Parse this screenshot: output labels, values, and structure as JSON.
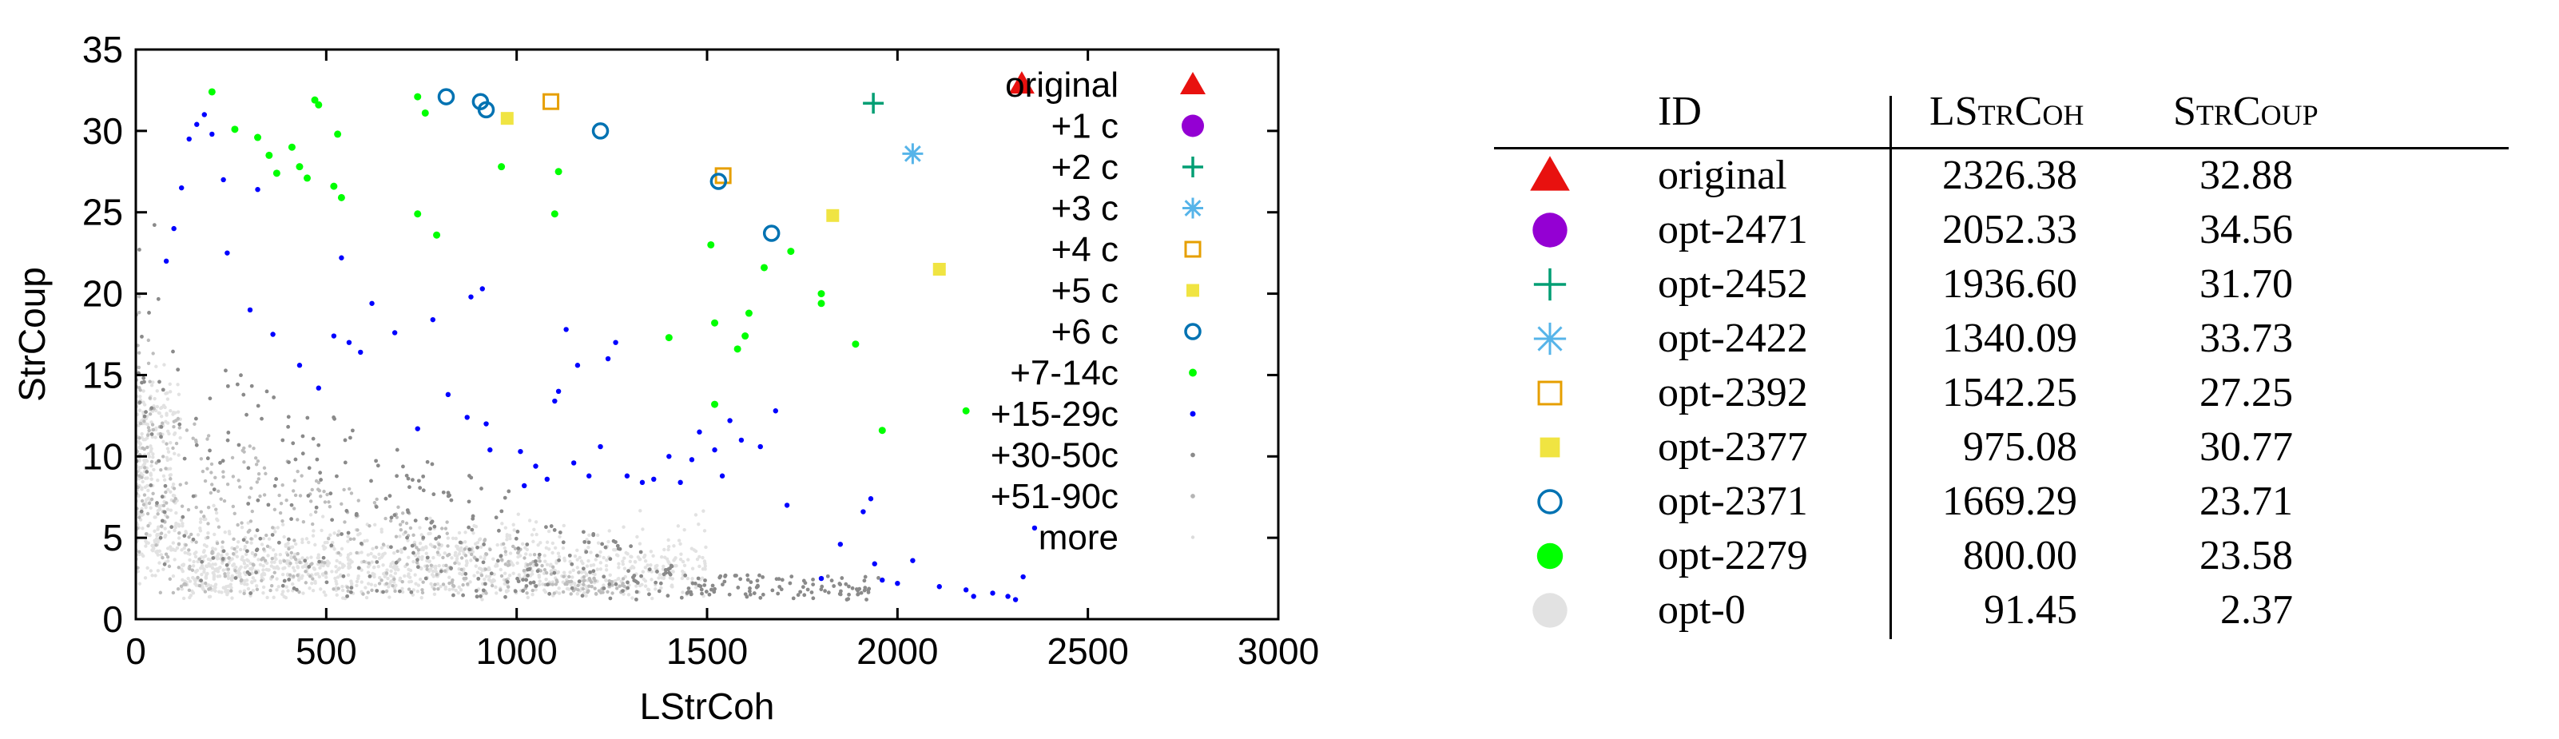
{
  "chart_data": {
    "type": "scatter",
    "xlabel": "LStrCoh",
    "ylabel": "StrCoup",
    "xlim": [
      0,
      3000
    ],
    "ylim": [
      0,
      35
    ],
    "xticks": [
      "0",
      "500",
      "1000",
      "1500",
      "2000",
      "2500",
      "3000"
    ],
    "yticks": [
      "0",
      "5",
      "10",
      "15",
      "20",
      "25",
      "30",
      "35"
    ],
    "legend_position": "top-right",
    "series": [
      {
        "name": "original",
        "marker": "triangle",
        "color": "#e8110f",
        "points": [
          [
            2326.38,
            32.88
          ]
        ]
      },
      {
        "name": "+1 c",
        "marker": "circle",
        "color": "#9400d3",
        "points": []
      },
      {
        "name": "+2 c",
        "marker": "plus",
        "color": "#009e73",
        "points": [
          [
            1936.6,
            31.7
          ]
        ]
      },
      {
        "name": "+3 c",
        "marker": "star",
        "color": "#56b4e9",
        "points": [
          [
            2040,
            28.6
          ]
        ]
      },
      {
        "name": "+4 c",
        "marker": "square-open",
        "color": "#e69f00",
        "points": [
          [
            1090,
            31.8
          ],
          [
            1542.25,
            27.25
          ]
        ]
      },
      {
        "name": "+5 c",
        "marker": "square-filled",
        "color": "#f0e442",
        "points": [
          [
            975.08,
            30.77
          ],
          [
            1830,
            24.8
          ],
          [
            2110,
            21.5
          ]
        ]
      },
      {
        "name": "+6 c",
        "marker": "circle-open",
        "color": "#0072b2",
        "points": [
          [
            815,
            32.1
          ],
          [
            905,
            31.8
          ],
          [
            920,
            31.3
          ],
          [
            1220,
            30.0
          ],
          [
            1530,
            26.9
          ],
          [
            1669.29,
            23.71
          ]
        ]
      },
      {
        "name": "+7-14c",
        "marker": "dot-large",
        "color": "#00ff00",
        "points": [
          [
            200,
            32.4
          ],
          [
            260,
            30.1
          ],
          [
            320,
            29.6
          ],
          [
            350,
            28.5
          ],
          [
            370,
            27.4
          ],
          [
            410,
            29.0
          ],
          [
            430,
            27.8
          ],
          [
            450,
            27.1
          ],
          [
            470,
            31.9
          ],
          [
            480,
            31.6
          ],
          [
            520,
            26.6
          ],
          [
            530,
            29.8
          ],
          [
            540,
            25.9
          ],
          [
            740,
            32.1
          ],
          [
            760,
            31.1
          ],
          [
            740,
            24.9
          ],
          [
            790,
            23.6
          ],
          [
            960,
            27.8
          ],
          [
            1110,
            27.5
          ],
          [
            1100,
            24.9
          ],
          [
            1510,
            23.0
          ],
          [
            1520,
            18.2
          ],
          [
            1600,
            17.4
          ],
          [
            1610,
            18.8
          ],
          [
            1580,
            16.6
          ],
          [
            1520,
            13.2
          ],
          [
            1400,
            17.3
          ],
          [
            1650,
            21.6
          ],
          [
            1720,
            22.6
          ],
          [
            1800,
            20.0
          ],
          [
            1800,
            19.4
          ],
          [
            1890,
            16.9
          ],
          [
            1960,
            11.6
          ],
          [
            2180,
            12.8
          ]
        ]
      },
      {
        "name": "+15-29c",
        "marker": "dot",
        "color": "#0000ff",
        "points": [
          [
            80,
            22.0
          ],
          [
            100,
            24.0
          ],
          [
            120,
            26.5
          ],
          [
            140,
            29.5
          ],
          [
            160,
            30.4
          ],
          [
            180,
            31.0
          ],
          [
            200,
            29.8
          ],
          [
            230,
            27.0
          ],
          [
            240,
            22.5
          ],
          [
            300,
            19.0
          ],
          [
            320,
            26.4
          ],
          [
            360,
            17.5
          ],
          [
            430,
            15.6
          ],
          [
            480,
            14.2
          ],
          [
            520,
            17.4
          ],
          [
            540,
            22.2
          ],
          [
            560,
            17.0
          ],
          [
            590,
            16.4
          ],
          [
            620,
            19.4
          ],
          [
            680,
            17.6
          ],
          [
            740,
            11.7
          ],
          [
            780,
            18.4
          ],
          [
            820,
            13.8
          ],
          [
            870,
            12.4
          ],
          [
            880,
            19.8
          ],
          [
            910,
            20.3
          ],
          [
            920,
            12.0
          ],
          [
            930,
            10.4
          ],
          [
            1010,
            10.3
          ],
          [
            1020,
            8.2
          ],
          [
            1050,
            9.4
          ],
          [
            1080,
            8.6
          ],
          [
            1100,
            13.4
          ],
          [
            1110,
            14.0
          ],
          [
            1130,
            17.8
          ],
          [
            1150,
            9.6
          ],
          [
            1160,
            15.6
          ],
          [
            1190,
            8.8
          ],
          [
            1220,
            10.6
          ],
          [
            1240,
            16.0
          ],
          [
            1260,
            17.0
          ],
          [
            1290,
            8.8
          ],
          [
            1330,
            8.4
          ],
          [
            1360,
            8.6
          ],
          [
            1400,
            10.0
          ],
          [
            1430,
            8.4
          ],
          [
            1460,
            9.8
          ],
          [
            1480,
            11.5
          ],
          [
            1520,
            10.4
          ],
          [
            1540,
            8.8
          ],
          [
            1560,
            12.2
          ],
          [
            1590,
            11.0
          ],
          [
            1640,
            10.6
          ],
          [
            1680,
            12.8
          ],
          [
            1710,
            7.0
          ],
          [
            1800,
            2.5
          ],
          [
            1850,
            4.6
          ],
          [
            1910,
            6.6
          ],
          [
            1930,
            7.4
          ],
          [
            1940,
            3.4
          ],
          [
            1960,
            2.4
          ],
          [
            2000,
            2.2
          ],
          [
            2040,
            3.6
          ],
          [
            2110,
            2.0
          ],
          [
            2180,
            1.8
          ],
          [
            2200,
            1.4
          ],
          [
            2250,
            1.6
          ],
          [
            2290,
            1.4
          ],
          [
            2310,
            1.2
          ],
          [
            2330,
            2.6
          ],
          [
            2360,
            5.6
          ]
        ]
      },
      {
        "name": "+30-50c",
        "marker": "dot-small",
        "color": "#8a8a8a",
        "points": []
      },
      {
        "name": "+51-90c",
        "marker": "dot-small",
        "color": "#b5b5b5",
        "points": []
      },
      {
        "name": "more",
        "marker": "dot-tiny",
        "color": "#dcdcdc",
        "points": []
      }
    ]
  },
  "table": {
    "headers": {
      "id": "ID",
      "lstrcoh": "LStrCoh",
      "strcoup": "StrCoup"
    },
    "rows": [
      {
        "symbol": "triangle",
        "color": "#e8110f",
        "id": "original",
        "lstrcoh": "2326.38",
        "strcoup": "32.88"
      },
      {
        "symbol": "circle",
        "color": "#9400d3",
        "id": "opt-2471",
        "lstrcoh": "2052.33",
        "strcoup": "34.56"
      },
      {
        "symbol": "plus",
        "color": "#009e73",
        "id": "opt-2452",
        "lstrcoh": "1936.60",
        "strcoup": "31.70"
      },
      {
        "symbol": "star",
        "color": "#56b4e9",
        "id": "opt-2422",
        "lstrcoh": "1340.09",
        "strcoup": "33.73"
      },
      {
        "symbol": "square-open",
        "color": "#e69f00",
        "id": "opt-2392",
        "lstrcoh": "1542.25",
        "strcoup": "27.25"
      },
      {
        "symbol": "square-filled",
        "color": "#f0e442",
        "id": "opt-2377",
        "lstrcoh": "975.08",
        "strcoup": "30.77"
      },
      {
        "symbol": "circle-open",
        "color": "#0072b2",
        "id": "opt-2371",
        "lstrcoh": "1669.29",
        "strcoup": "23.71"
      },
      {
        "symbol": "dot-large",
        "color": "#00ff00",
        "id": "opt-2279",
        "lstrcoh": "800.00",
        "strcoup": "23.58"
      },
      {
        "symbol": "circle-gray",
        "color": "#e2e2e2",
        "id": "opt-0",
        "lstrcoh": "91.45",
        "strcoup": "2.37"
      }
    ]
  }
}
